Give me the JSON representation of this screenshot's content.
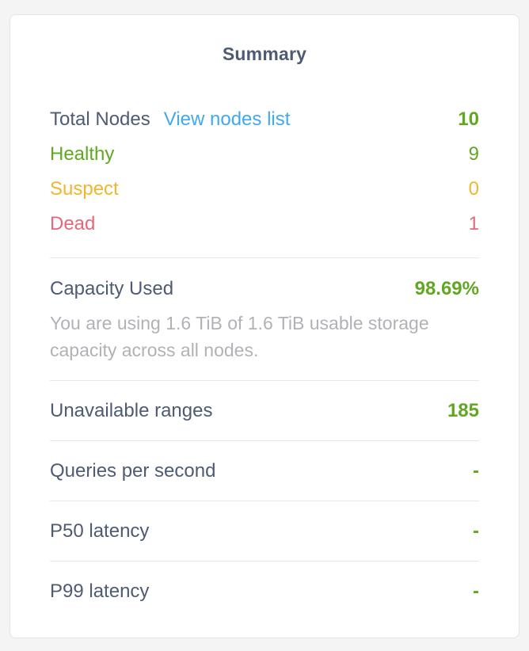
{
  "panel": {
    "title": "Summary"
  },
  "colors": {
    "green": "#61a822",
    "yellow": "#f1b52e",
    "red": "#e5687b",
    "link_blue": "#41a9f0",
    "label_slate": "#4e5b73",
    "muted_gray": "#b0b2b6",
    "card_background": "#ffffff",
    "page_background": "#f4f4f5",
    "divider": "#e8e8e8"
  },
  "nodes": {
    "total": {
      "label": "Total Nodes",
      "link": "View nodes list",
      "value": "10"
    },
    "statuses": [
      {
        "label": "Healthy",
        "value": "9"
      },
      {
        "label": "Suspect",
        "value": "0"
      },
      {
        "label": "Dead",
        "value": "1"
      }
    ]
  },
  "capacity": {
    "label": "Capacity Used",
    "value": "98.69%",
    "description": "You are using 1.6 TiB of 1.6 TiB usable storage capacity across all nodes."
  },
  "metrics": [
    {
      "label": "Unavailable ranges",
      "value": "185"
    },
    {
      "label": "Queries per second",
      "value": "-"
    },
    {
      "label": "P50 latency",
      "value": "-"
    },
    {
      "label": "P99 latency",
      "value": "-"
    }
  ]
}
